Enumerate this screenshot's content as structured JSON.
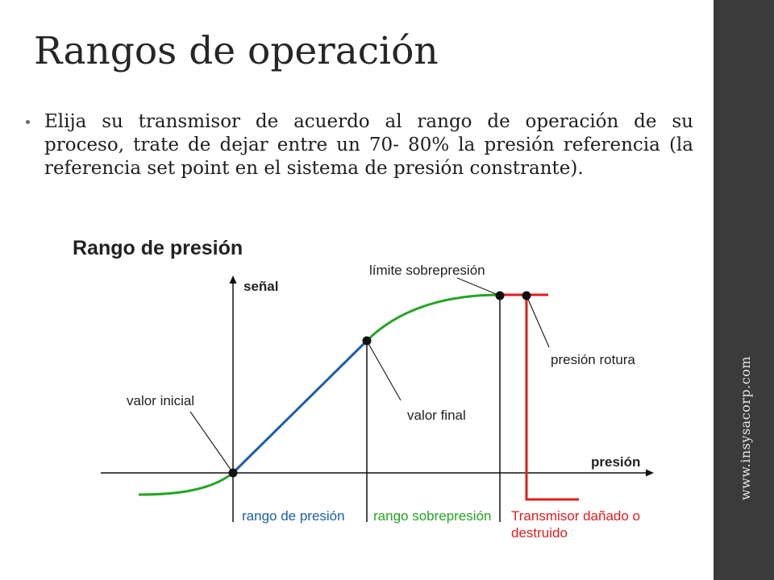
{
  "slide": {
    "title": "Rangos de operación",
    "bullet_lines": [
      "Elija su transmisor de acuerdo al rango de operación de su",
      "proceso, trate de dejar entre un 70- 80% la presión referencia (la",
      "referencia set point en el sistema de presión constrante)."
    ],
    "sidebar_text": "www.insysacorp.com"
  },
  "diagram": {
    "title": "Rango de presión",
    "y_axis_label": "señal",
    "x_axis_label": "presión",
    "annotations": {
      "start_value": "valor inicial",
      "end_value": "valor final",
      "overpressure_limit": "límite sobrepresión",
      "burst_pressure": "presión rotura"
    },
    "regions": {
      "pressure_range": "rango de presión",
      "overpressure_range": "rango sobrepresión",
      "damaged": [
        "Transmisor dañado o",
        "destruido"
      ]
    },
    "colors": {
      "pressure_range": "#1d5eaa",
      "overpressure_range": "#24a424",
      "damaged": "#e21c1c"
    }
  }
}
